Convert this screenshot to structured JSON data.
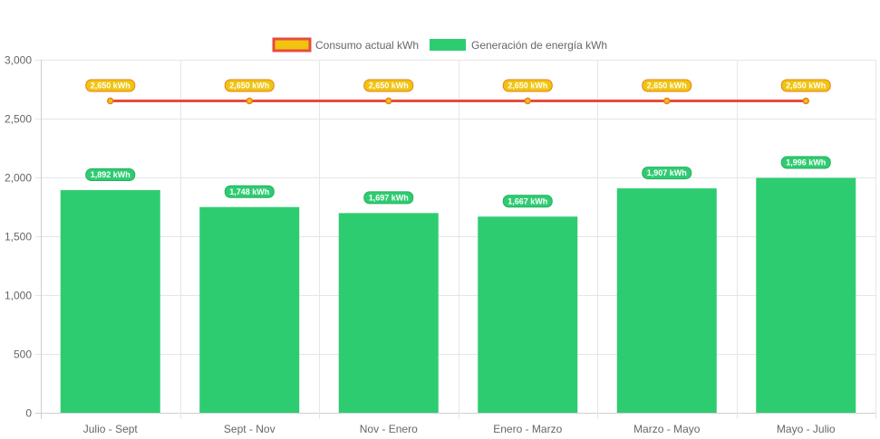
{
  "chart_data": {
    "type": "bar",
    "categories": [
      "Julio - Sept",
      "Sept - Nov",
      "Nov - Enero",
      "Enero - Marzo",
      "Marzo - Mayo",
      "Mayo - Julio"
    ],
    "series": [
      {
        "name": "Consumo actual kWh",
        "type": "line",
        "values": [
          2650,
          2650,
          2650,
          2650,
          2650,
          2650
        ],
        "labels": [
          "2,650 kWh",
          "2,650 kWh",
          "2,650 kWh",
          "2,650 kWh",
          "2,650 kWh",
          "2,650 kWh"
        ],
        "color": "#e74c3c",
        "fill_color": "#f1c40f"
      },
      {
        "name": "Generación de energía kWh",
        "type": "bar",
        "values": [
          1892,
          1748,
          1697,
          1667,
          1907,
          1996
        ],
        "labels": [
          "1,892 kWh",
          "1,748 kWh",
          "1,697 kWh",
          "1,667 kWh",
          "1,907 kWh",
          "1,996 kWh"
        ],
        "color": "#2ecc71"
      }
    ],
    "ylim": [
      0,
      3000
    ],
    "yticks": [
      0,
      500,
      1000,
      1500,
      2000,
      2500,
      3000
    ],
    "ytick_labels": [
      "0",
      "500",
      "1,000",
      "1,500",
      "2,000",
      "2,500",
      "3,000"
    ],
    "grid": true,
    "legend_position": "top-center"
  }
}
